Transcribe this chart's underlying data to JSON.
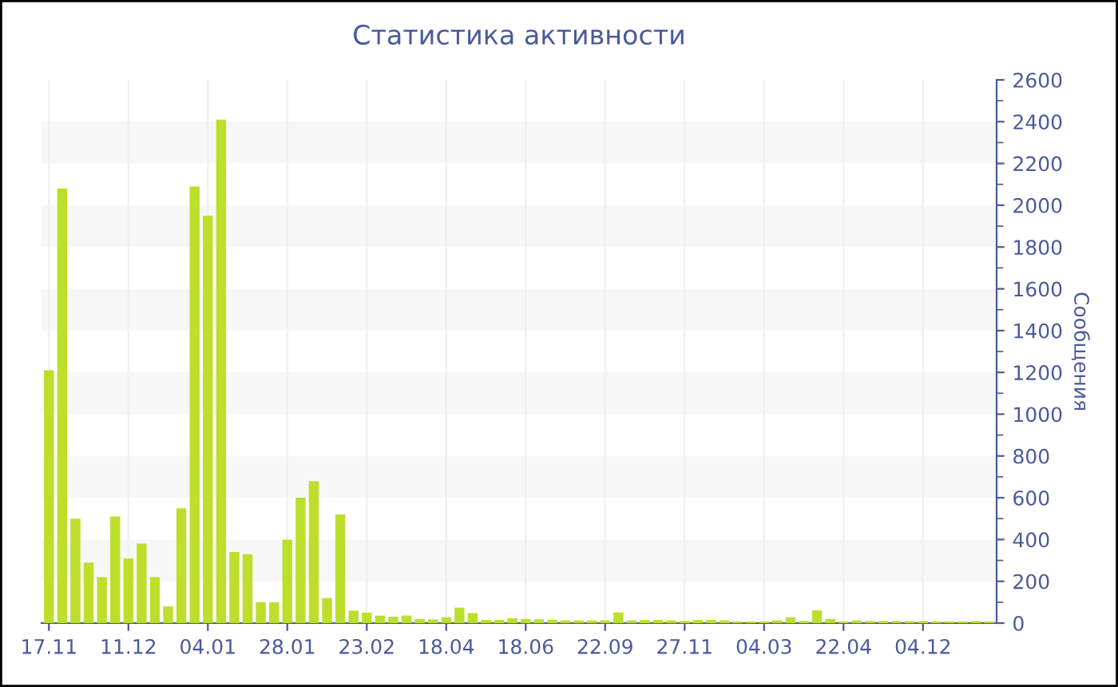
{
  "chart_data": {
    "type": "bar",
    "title": "Статистика активности",
    "ylabel": "Сообщения",
    "categories": [
      "17.11",
      null,
      null,
      null,
      null,
      null,
      "11.12",
      null,
      null,
      null,
      null,
      null,
      "04.01",
      null,
      null,
      null,
      null,
      null,
      "28.01",
      null,
      null,
      null,
      null,
      null,
      "23.02",
      null,
      null,
      null,
      null,
      null,
      "18.04",
      null,
      null,
      null,
      null,
      null,
      "18.06",
      null,
      null,
      null,
      null,
      null,
      "22.09",
      null,
      null,
      null,
      null,
      null,
      "27.11",
      null,
      null,
      null,
      null,
      null,
      "04.03",
      null,
      null,
      null,
      null,
      null,
      "22.04",
      null,
      null,
      null,
      null,
      null,
      "04.12",
      null,
      null,
      null,
      null,
      null
    ],
    "values": [
      1210,
      2080,
      500,
      290,
      220,
      510,
      310,
      380,
      220,
      80,
      550,
      2090,
      1950,
      2410,
      340,
      330,
      100,
      100,
      400,
      600,
      680,
      120,
      520,
      60,
      50,
      36,
      31,
      36,
      20,
      18,
      28,
      74,
      48,
      15,
      15,
      23,
      20,
      18,
      15,
      13,
      13,
      13,
      13,
      51,
      13,
      15,
      15,
      13,
      10,
      15,
      15,
      13,
      8,
      8,
      8,
      13,
      28,
      10,
      61,
      20,
      8,
      13,
      10,
      10,
      10,
      10,
      10,
      8,
      8,
      8,
      10,
      8
    ],
    "color": "#bddf2b",
    "ylim": [
      0,
      2600
    ],
    "yticks": [
      0,
      200,
      400,
      600,
      800,
      1000,
      1200,
      1400,
      1600,
      1800,
      2000,
      2200,
      2400,
      2600
    ],
    "grid": "x",
    "bands": [
      {
        "axis": "y",
        "from": 200,
        "to": 400,
        "color": "#f7f7f7"
      },
      {
        "axis": "y",
        "from": 600,
        "to": 800,
        "color": "#f7f7f7"
      },
      {
        "axis": "y",
        "from": 1000,
        "to": 1200,
        "color": "#f7f7f7"
      },
      {
        "axis": "y",
        "from": 1400,
        "to": 1600,
        "color": "#f7f7f7"
      },
      {
        "axis": "y",
        "from": 1800,
        "to": 2000,
        "color": "#f7f7f7"
      },
      {
        "axis": "y",
        "from": 2200,
        "to": 2400,
        "color": "#f7f7f7"
      }
    ]
  }
}
